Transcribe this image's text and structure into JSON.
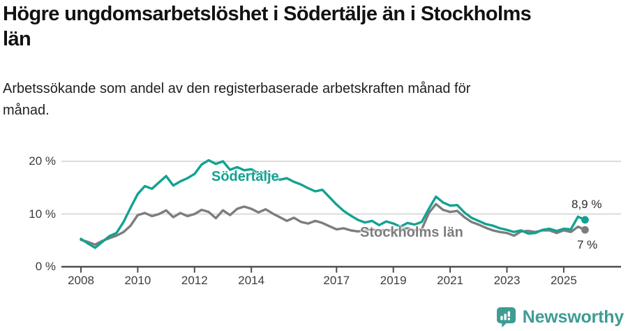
{
  "header": {
    "title": "Högre ungdomsarbetslöshet i Södertälje än i Stockholms län",
    "title_lines": [
      "Högre ungdomsarbetslöshet i Södertälje än i Stockholms",
      "län"
    ],
    "subtitle": "Arbetssökande som andel av den registerbaserade arbetskraften månad för månad.",
    "subtitle_lines": [
      "Arbetssökande som andel av den registerbaserade arbetskraften månad för",
      "månad."
    ]
  },
  "chart_data": {
    "type": "line",
    "title": "Högre ungdomsarbetslöshet i Södertälje än i Stockholms län",
    "subtitle": "Arbetssökande som andel av den registerbaserade arbetskraften månad för månad.",
    "xlabel": "",
    "ylabel": "",
    "x_unit": "year",
    "x_start": 2008.0,
    "x_step": 0.25,
    "x_end": 2025.75,
    "xlim": [
      2007.3,
      2027.0
    ],
    "ylim": [
      0,
      22
    ],
    "grid": "horizontal",
    "legend": "inline-labels",
    "x_tick_values": [
      2008,
      2010,
      2012,
      2014,
      2017,
      2019,
      2021,
      2023,
      2025
    ],
    "x_tick_labels": [
      "2008",
      "2010",
      "2012",
      "2014",
      "2017",
      "2019",
      "2021",
      "2023",
      "2025"
    ],
    "y_tick_values": [
      20,
      10,
      0
    ],
    "y_tick_labels": [
      "20 %",
      "10 %",
      "0 %"
    ],
    "series": [
      {
        "name": "Södertälje",
        "color": "#12A291",
        "end_label": "8,9 %",
        "end_value": 8.9,
        "values": [
          5.3,
          4.4,
          3.6,
          4.7,
          5.8,
          6.4,
          8.5,
          11.2,
          13.8,
          15.3,
          14.8,
          16.0,
          17.2,
          15.4,
          16.2,
          16.8,
          17.6,
          19.4,
          20.2,
          19.5,
          20.0,
          18.4,
          18.9,
          18.3,
          18.5,
          17.7,
          17.9,
          17.1,
          16.5,
          16.8,
          16.1,
          15.6,
          14.9,
          14.3,
          14.6,
          13.2,
          11.8,
          10.6,
          9.7,
          8.9,
          8.4,
          8.7,
          7.9,
          8.6,
          8.2,
          7.6,
          8.3,
          8.0,
          8.5,
          11.0,
          13.3,
          12.2,
          11.6,
          11.7,
          10.3,
          9.3,
          8.7,
          8.1,
          7.8,
          7.3,
          7.0,
          6.6,
          6.9,
          6.3,
          6.4,
          7.0,
          7.2,
          6.8,
          7.2,
          7.1,
          9.5,
          8.9
        ]
      },
      {
        "name": "Stockholms län",
        "color": "#7D7D7D",
        "end_label": "7 %",
        "end_value": 7.0,
        "values": [
          5.1,
          4.7,
          4.2,
          4.9,
          5.4,
          5.9,
          6.6,
          7.8,
          9.8,
          10.2,
          9.6,
          10.0,
          10.7,
          9.4,
          10.2,
          9.6,
          10.0,
          10.8,
          10.4,
          9.2,
          10.7,
          9.8,
          11.0,
          11.4,
          11.0,
          10.3,
          10.9,
          10.1,
          9.4,
          8.7,
          9.3,
          8.5,
          8.2,
          8.7,
          8.3,
          7.7,
          7.1,
          7.3,
          6.9,
          6.7,
          6.9,
          7.1,
          6.8,
          7.0,
          6.9,
          7.1,
          7.3,
          6.9,
          7.1,
          10.2,
          11.9,
          10.8,
          10.4,
          10.6,
          9.4,
          8.5,
          8.0,
          7.4,
          6.9,
          6.6,
          6.4,
          5.9,
          6.7,
          6.8,
          6.6,
          6.9,
          6.9,
          6.4,
          6.9,
          6.6,
          7.6,
          7.0
        ]
      }
    ]
  },
  "colors": {
    "background": "#FFFFFF",
    "accent_teal": "#12A291",
    "line_gray": "#7D7D7D",
    "gridline": "#DBDBDB",
    "axis": "#4D4D4D",
    "text_dark": "#121212",
    "brand_teal": "#3E9C94"
  },
  "footer": {
    "brand": "Newsworthy",
    "badge_icon": "bar-chart-exclamation-pin"
  }
}
